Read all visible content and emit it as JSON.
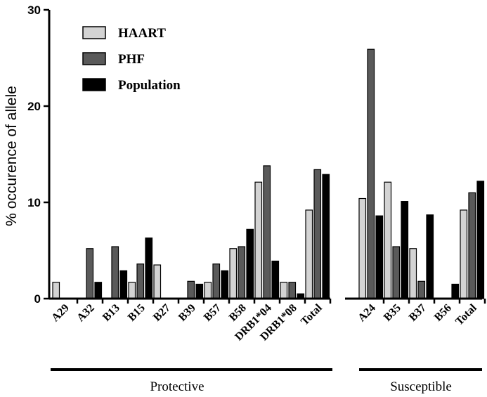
{
  "chart_data": {
    "type": "bar",
    "title": "",
    "xlabel": "",
    "ylabel": "% occurence of allele",
    "ylim": [
      0,
      30
    ],
    "yticks": [
      0,
      10,
      20,
      30
    ],
    "grid": false,
    "legend_position": "top-left",
    "series": [
      {
        "name": "HAART",
        "color": "#d3d3d3"
      },
      {
        "name": "PHF",
        "color": "#5a5a5a"
      },
      {
        "name": "Population",
        "color": "#000000"
      }
    ],
    "groups": [
      {
        "label": "Protective",
        "categories": [
          "A29",
          "A32",
          "B13",
          "B15",
          "B27",
          "B39",
          "B57",
          "B58",
          "DRB1*04",
          "DRB1*08",
          "Total"
        ],
        "values": {
          "HAART": [
            1.7,
            0,
            0,
            1.7,
            3.5,
            0,
            1.7,
            5.2,
            12.1,
            1.7,
            9.2
          ],
          "PHF": [
            0,
            5.2,
            5.4,
            3.6,
            0,
            1.8,
            3.6,
            5.4,
            13.8,
            1.7,
            13.4
          ],
          "Population": [
            0,
            1.7,
            2.9,
            6.3,
            0,
            1.5,
            2.9,
            7.2,
            3.9,
            0.5,
            12.9
          ]
        }
      },
      {
        "label": "Susceptible",
        "categories": [
          "A24",
          "B35",
          "B37",
          "B56",
          "Total"
        ],
        "values": {
          "HAART": [
            10.4,
            12.1,
            5.2,
            0,
            9.2
          ],
          "PHF": [
            25.9,
            5.4,
            1.8,
            0,
            11.0
          ],
          "Population": [
            8.6,
            10.1,
            8.7,
            1.5,
            12.2
          ]
        }
      }
    ]
  }
}
